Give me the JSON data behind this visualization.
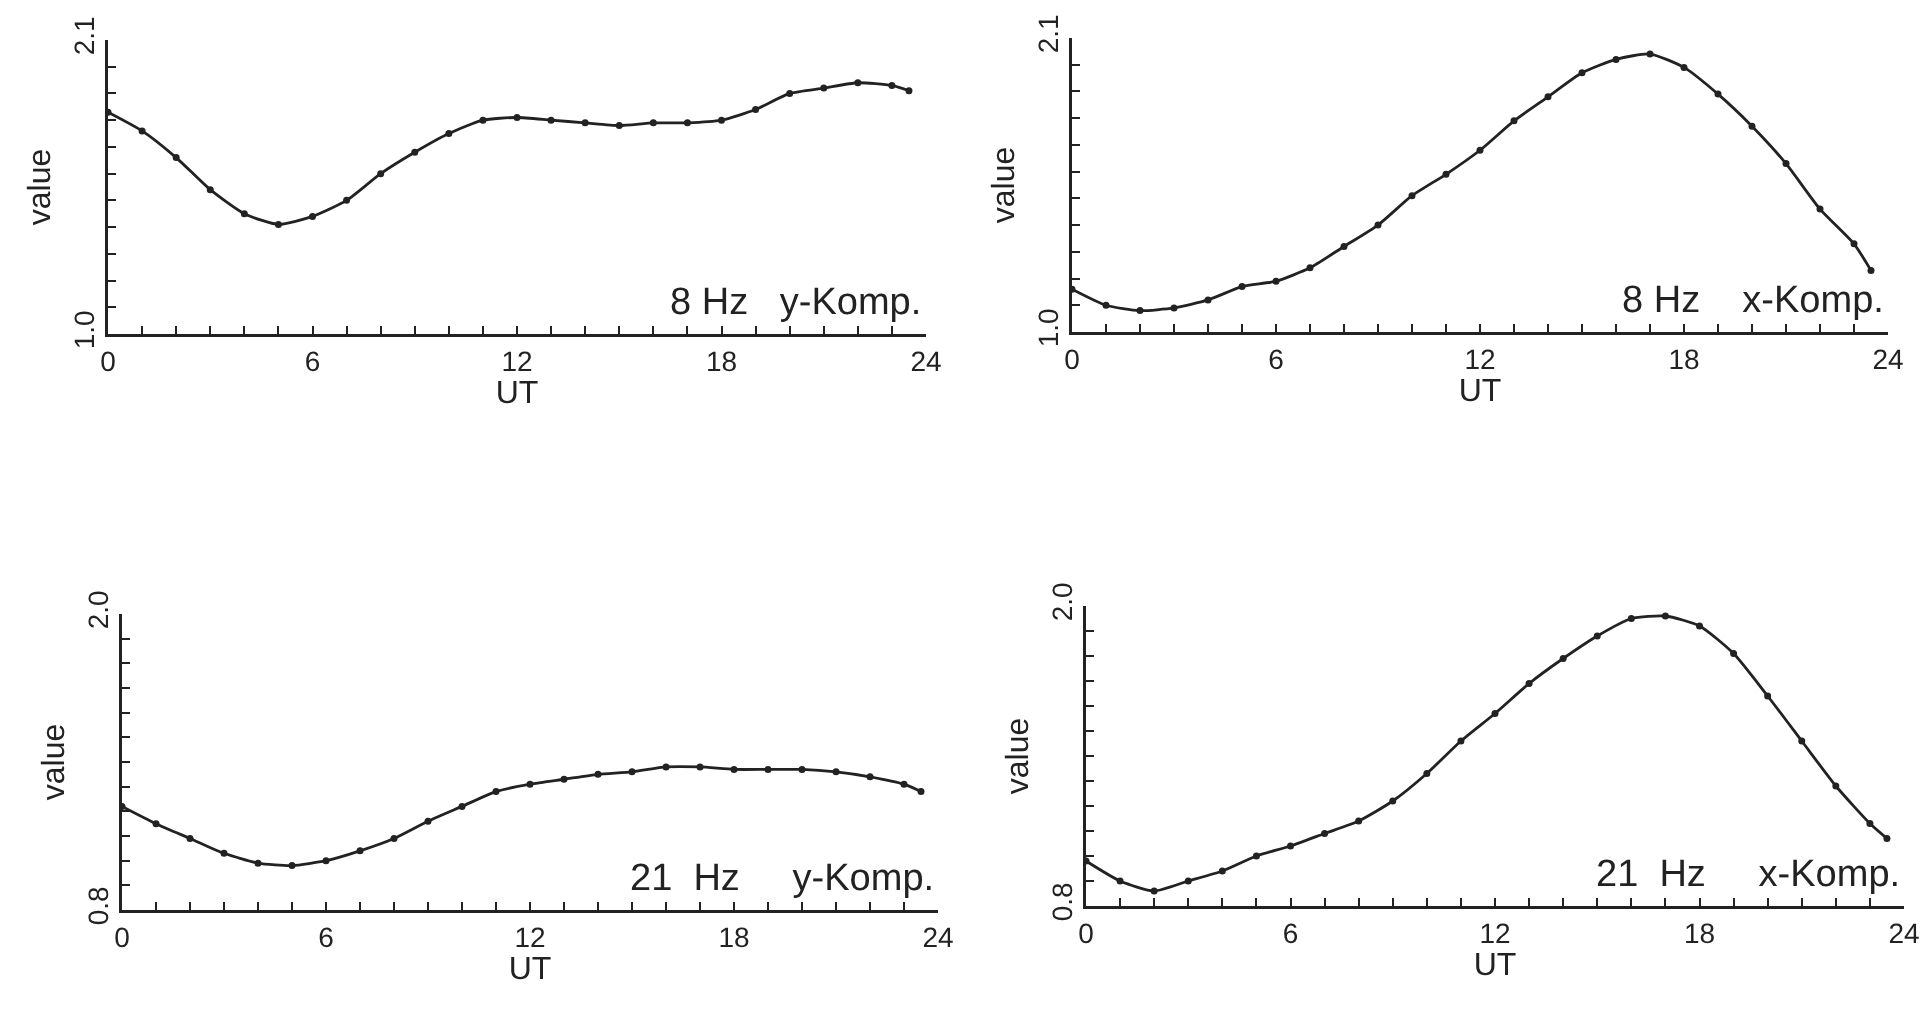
{
  "chart_data": [
    {
      "type": "line",
      "xlabel": "UT",
      "ylabel": "value",
      "annotations": [
        "8 Hz   y-Komp."
      ],
      "marker": "circle",
      "line_style": "solid",
      "xlim": [
        0,
        24
      ],
      "ylim": [
        1.0,
        2.1
      ],
      "xticks": [
        0,
        {
          "value": 1,
          "label": null
        },
        {
          "value": 2,
          "label": null
        },
        {
          "value": 3,
          "label": null
        },
        {
          "value": 4,
          "label": null
        },
        {
          "value": 5,
          "label": null
        },
        6,
        {
          "value": 7,
          "label": null
        },
        {
          "value": 8,
          "label": null
        },
        {
          "value": 9,
          "label": null
        },
        {
          "value": 10,
          "label": null
        },
        {
          "value": 11,
          "label": null
        },
        12,
        {
          "value": 13,
          "label": null
        },
        {
          "value": 14,
          "label": null
        },
        {
          "value": 15,
          "label": null
        },
        {
          "value": 16,
          "label": null
        },
        {
          "value": 17,
          "label": null
        },
        18,
        {
          "value": 19,
          "label": null
        },
        {
          "value": 20,
          "label": null
        },
        {
          "value": 21,
          "label": null
        },
        {
          "value": 22,
          "label": null
        },
        {
          "value": 23,
          "label": null
        },
        24
      ],
      "yticks": [
        {
          "value": 1.0,
          "label": "1.0"
        },
        {
          "value": 1.1,
          "label": null
        },
        {
          "value": 1.2,
          "label": null
        },
        {
          "value": 1.3,
          "label": null
        },
        {
          "value": 1.4,
          "label": null
        },
        {
          "value": 1.5,
          "label": null
        },
        {
          "value": 1.6,
          "label": null
        },
        {
          "value": 1.7,
          "label": null
        },
        {
          "value": 1.8,
          "label": null
        },
        {
          "value": 1.9,
          "label": null
        },
        {
          "value": 2.0,
          "label": null
        },
        {
          "value": 2.1,
          "label": "2.1"
        }
      ],
      "x": [
        0,
        1,
        2,
        3,
        4,
        5,
        6,
        7,
        8,
        9,
        10,
        11,
        12,
        13,
        14,
        15,
        16,
        17,
        18,
        19,
        20,
        21,
        22,
        23,
        23.5
      ],
      "series": [
        {
          "color": "#222222",
          "values": [
            1.83,
            1.76,
            1.66,
            1.54,
            1.45,
            1.41,
            1.44,
            1.5,
            1.6,
            1.68,
            1.75,
            1.8,
            1.81,
            1.8,
            1.79,
            1.78,
            1.79,
            1.79,
            1.8,
            1.84,
            1.9,
            1.92,
            1.94,
            1.93,
            1.91
          ]
        }
      ]
    },
    {
      "type": "line",
      "xlabel": "UT",
      "ylabel": "value",
      "annotations": [
        "8 Hz    x-Komp."
      ],
      "marker": "circle",
      "line_style": "solid",
      "xlim": [
        0,
        24
      ],
      "ylim": [
        1.0,
        2.1
      ],
      "xticks": [
        0,
        {
          "value": 1,
          "label": null
        },
        {
          "value": 2,
          "label": null
        },
        {
          "value": 3,
          "label": null
        },
        {
          "value": 4,
          "label": null
        },
        {
          "value": 5,
          "label": null
        },
        6,
        {
          "value": 7,
          "label": null
        },
        {
          "value": 8,
          "label": null
        },
        {
          "value": 9,
          "label": null
        },
        {
          "value": 10,
          "label": null
        },
        {
          "value": 11,
          "label": null
        },
        12,
        {
          "value": 13,
          "label": null
        },
        {
          "value": 14,
          "label": null
        },
        {
          "value": 15,
          "label": null
        },
        {
          "value": 16,
          "label": null
        },
        {
          "value": 17,
          "label": null
        },
        18,
        {
          "value": 19,
          "label": null
        },
        {
          "value": 20,
          "label": null
        },
        {
          "value": 21,
          "label": null
        },
        {
          "value": 22,
          "label": null
        },
        {
          "value": 23,
          "label": null
        },
        24
      ],
      "yticks": [
        {
          "value": 1.0,
          "label": "1.0"
        },
        {
          "value": 1.1,
          "label": null
        },
        {
          "value": 1.2,
          "label": null
        },
        {
          "value": 1.3,
          "label": null
        },
        {
          "value": 1.4,
          "label": null
        },
        {
          "value": 1.5,
          "label": null
        },
        {
          "value": 1.6,
          "label": null
        },
        {
          "value": 1.7,
          "label": null
        },
        {
          "value": 1.8,
          "label": null
        },
        {
          "value": 1.9,
          "label": null
        },
        {
          "value": 2.0,
          "label": null
        },
        {
          "value": 2.1,
          "label": "2.1"
        }
      ],
      "x": [
        0,
        1,
        2,
        3,
        4,
        5,
        6,
        7,
        8,
        9,
        10,
        11,
        12,
        13,
        14,
        15,
        16,
        17,
        18,
        19,
        20,
        21,
        22,
        23,
        23.5
      ],
      "series": [
        {
          "color": "#222222",
          "values": [
            1.16,
            1.1,
            1.08,
            1.09,
            1.12,
            1.17,
            1.19,
            1.24,
            1.32,
            1.4,
            1.51,
            1.59,
            1.68,
            1.79,
            1.88,
            1.97,
            2.02,
            2.04,
            1.99,
            1.89,
            1.77,
            1.63,
            1.46,
            1.33,
            1.23
          ]
        }
      ]
    },
    {
      "type": "line",
      "xlabel": "UT",
      "ylabel": "value",
      "annotations": [
        "21  Hz     y-Komp."
      ],
      "marker": "circle",
      "line_style": "solid",
      "xlim": [
        0,
        24
      ],
      "ylim": [
        0.8,
        2.0
      ],
      "xticks": [
        0,
        {
          "value": 1,
          "label": null
        },
        {
          "value": 2,
          "label": null
        },
        {
          "value": 3,
          "label": null
        },
        {
          "value": 4,
          "label": null
        },
        {
          "value": 5,
          "label": null
        },
        6,
        {
          "value": 7,
          "label": null
        },
        {
          "value": 8,
          "label": null
        },
        {
          "value": 9,
          "label": null
        },
        {
          "value": 10,
          "label": null
        },
        {
          "value": 11,
          "label": null
        },
        12,
        {
          "value": 13,
          "label": null
        },
        {
          "value": 14,
          "label": null
        },
        {
          "value": 15,
          "label": null
        },
        {
          "value": 16,
          "label": null
        },
        {
          "value": 17,
          "label": null
        },
        18,
        {
          "value": 19,
          "label": null
        },
        {
          "value": 20,
          "label": null
        },
        {
          "value": 21,
          "label": null
        },
        {
          "value": 22,
          "label": null
        },
        {
          "value": 23,
          "label": null
        },
        24
      ],
      "yticks": [
        0.8,
        {
          "value": 0.9,
          "label": null
        },
        {
          "value": 1.0,
          "label": null
        },
        {
          "value": 1.1,
          "label": null
        },
        {
          "value": 1.2,
          "label": null
        },
        {
          "value": 1.3,
          "label": null
        },
        {
          "value": 1.4,
          "label": null
        },
        {
          "value": 1.5,
          "label": null
        },
        {
          "value": 1.6,
          "label": null
        },
        {
          "value": 1.7,
          "label": null
        },
        {
          "value": 1.8,
          "label": null
        },
        {
          "value": 1.9,
          "label": null
        },
        {
          "value": 2.0,
          "label": "2.0"
        }
      ],
      "x": [
        0,
        1,
        2,
        3,
        4,
        5,
        6,
        7,
        8,
        9,
        10,
        11,
        12,
        13,
        14,
        15,
        16,
        17,
        18,
        19,
        20,
        21,
        22,
        23,
        23.5
      ],
      "series": [
        {
          "color": "#222222",
          "values": [
            1.22,
            1.15,
            1.09,
            1.03,
            0.99,
            0.98,
            1.0,
            1.04,
            1.09,
            1.16,
            1.22,
            1.28,
            1.31,
            1.33,
            1.35,
            1.36,
            1.38,
            1.38,
            1.37,
            1.37,
            1.37,
            1.36,
            1.34,
            1.31,
            1.28
          ]
        }
      ]
    },
    {
      "type": "line",
      "xlabel": "UT",
      "ylabel": "value",
      "annotations": [
        "21  Hz     x-Komp."
      ],
      "marker": "circle",
      "line_style": "solid",
      "xlim": [
        0,
        24
      ],
      "ylim": [
        0.8,
        2.0
      ],
      "xticks": [
        0,
        {
          "value": 1,
          "label": null
        },
        {
          "value": 2,
          "label": null
        },
        {
          "value": 3,
          "label": null
        },
        {
          "value": 4,
          "label": null
        },
        {
          "value": 5,
          "label": null
        },
        6,
        {
          "value": 7,
          "label": null
        },
        {
          "value": 8,
          "label": null
        },
        {
          "value": 9,
          "label": null
        },
        {
          "value": 10,
          "label": null
        },
        {
          "value": 11,
          "label": null
        },
        12,
        {
          "value": 13,
          "label": null
        },
        {
          "value": 14,
          "label": null
        },
        {
          "value": 15,
          "label": null
        },
        {
          "value": 16,
          "label": null
        },
        {
          "value": 17,
          "label": null
        },
        18,
        {
          "value": 19,
          "label": null
        },
        {
          "value": 20,
          "label": null
        },
        {
          "value": 21,
          "label": null
        },
        {
          "value": 22,
          "label": null
        },
        {
          "value": 23,
          "label": null
        },
        24
      ],
      "yticks": [
        0.8,
        {
          "value": 0.9,
          "label": null
        },
        {
          "value": 1.0,
          "label": null
        },
        {
          "value": 1.1,
          "label": null
        },
        {
          "value": 1.2,
          "label": null
        },
        {
          "value": 1.3,
          "label": null
        },
        {
          "value": 1.4,
          "label": null
        },
        {
          "value": 1.5,
          "label": null
        },
        {
          "value": 1.6,
          "label": null
        },
        {
          "value": 1.7,
          "label": null
        },
        {
          "value": 1.8,
          "label": null
        },
        {
          "value": 1.9,
          "label": null
        },
        {
          "value": 2.0,
          "label": "2.0"
        }
      ],
      "x": [
        0,
        1,
        2,
        3,
        4,
        5,
        6,
        7,
        8,
        9,
        10,
        11,
        12,
        13,
        14,
        15,
        16,
        17,
        18,
        19,
        20,
        21,
        22,
        23,
        23.5
      ],
      "series": [
        {
          "color": "#222222",
          "values": [
            0.98,
            0.9,
            0.86,
            0.9,
            0.94,
            1.0,
            1.04,
            1.09,
            1.14,
            1.22,
            1.33,
            1.46,
            1.57,
            1.69,
            1.79,
            1.88,
            1.95,
            1.96,
            1.92,
            1.81,
            1.64,
            1.46,
            1.28,
            1.13,
            1.07
          ]
        }
      ]
    }
  ]
}
